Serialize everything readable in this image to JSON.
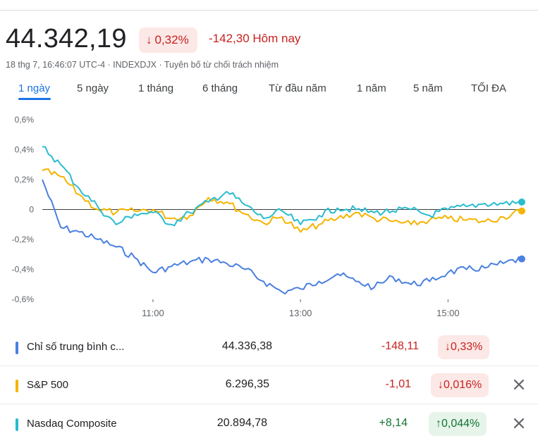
{
  "quote": {
    "price": "44.342,19",
    "change_pct": "0,32%",
    "change_abs": "-142,30 Hôm nay",
    "meta": "18 thg 7, 16:46:07 UTC-4 · INDEXDJX · Tuyên bố từ chối trách nhiệm",
    "arrow": "↓"
  },
  "tabs": [
    {
      "label": "1 ngày",
      "active": true
    },
    {
      "label": "5 ngày"
    },
    {
      "label": "1 tháng"
    },
    {
      "label": "6 tháng"
    },
    {
      "label": "Từ đầu năm"
    },
    {
      "label": "1 năm"
    },
    {
      "label": "5 năm"
    },
    {
      "label": "TỐI ĐA"
    }
  ],
  "colors": {
    "dow": "#4a80e0",
    "sp500": "#f5b400",
    "nasdaq": "#2abccf",
    "negative": "#c5221f",
    "positive": "#137333",
    "accent": "#1a73e8"
  },
  "chart_data": {
    "type": "line",
    "xlabel": "",
    "ylabel": "",
    "x_ticks": [
      "11:00",
      "13:00",
      "15:00"
    ],
    "x_range": [
      "09:30",
      "16:00"
    ],
    "y_ticks": [
      "0,6%",
      "0,4%",
      "0,2%",
      "0",
      "-0,2%",
      "-0,4%",
      "-0,6%"
    ],
    "ylim": [
      -0.6,
      0.6
    ],
    "baseline": 0,
    "grid": false,
    "series": [
      {
        "name": "Chỉ số trung bình c...",
        "color": "#4a80e0",
        "x": [
          "09:30",
          "09:45",
          "10:00",
          "10:15",
          "10:30",
          "10:45",
          "11:00",
          "11:15",
          "11:30",
          "11:45",
          "12:00",
          "12:15",
          "12:30",
          "12:45",
          "13:00",
          "13:15",
          "13:30",
          "13:45",
          "14:00",
          "14:15",
          "14:30",
          "14:45",
          "15:00",
          "15:15",
          "15:30",
          "15:45",
          "16:00"
        ],
        "values": [
          0.2,
          -0.12,
          -0.15,
          -0.2,
          -0.25,
          -0.32,
          -0.42,
          -0.38,
          -0.35,
          -0.33,
          -0.36,
          -0.4,
          -0.48,
          -0.55,
          -0.53,
          -0.48,
          -0.43,
          -0.48,
          -0.52,
          -0.45,
          -0.5,
          -0.48,
          -0.42,
          -0.4,
          -0.39,
          -0.36,
          -0.33
        ]
      },
      {
        "name": "S&P 500",
        "color": "#f5b400",
        "x": [
          "09:30",
          "09:45",
          "10:00",
          "10:15",
          "10:30",
          "10:45",
          "11:00",
          "11:15",
          "11:30",
          "11:45",
          "12:00",
          "12:15",
          "12:30",
          "12:45",
          "13:00",
          "13:15",
          "13:30",
          "13:45",
          "14:00",
          "14:15",
          "14:30",
          "14:45",
          "15:00",
          "15:15",
          "15:30",
          "15:45",
          "16:00"
        ],
        "values": [
          0.26,
          0.22,
          0.1,
          0.0,
          -0.02,
          -0.01,
          0.0,
          -0.06,
          -0.04,
          0.08,
          0.05,
          -0.03,
          -0.09,
          -0.05,
          -0.15,
          -0.1,
          -0.06,
          -0.02,
          -0.06,
          -0.08,
          -0.1,
          -0.07,
          -0.06,
          -0.07,
          -0.08,
          -0.05,
          -0.01
        ]
      },
      {
        "name": "Nasdaq Composite",
        "color": "#2abccf",
        "x": [
          "09:30",
          "09:45",
          "10:00",
          "10:15",
          "10:30",
          "10:45",
          "11:00",
          "11:15",
          "11:30",
          "11:45",
          "12:00",
          "12:15",
          "12:30",
          "12:45",
          "13:00",
          "13:15",
          "13:30",
          "13:45",
          "14:00",
          "14:15",
          "14:30",
          "14:45",
          "15:00",
          "15:15",
          "15:30",
          "15:45",
          "16:00"
        ],
        "values": [
          0.42,
          0.3,
          0.14,
          0.02,
          -0.1,
          -0.03,
          -0.02,
          -0.1,
          -0.02,
          0.05,
          0.12,
          0.03,
          -0.06,
          -0.01,
          -0.1,
          -0.04,
          0.01,
          0.0,
          -0.02,
          -0.01,
          0.0,
          -0.04,
          0.0,
          0.02,
          0.04,
          0.04,
          0.05
        ]
      }
    ]
  },
  "rows": [
    {
      "name": "Chỉ số trung bình c...",
      "value": "44.336,38",
      "abs": "-148,11",
      "pct": "0,33%",
      "arrow": "↓",
      "dir": "neg",
      "color": "#4a80e0"
    },
    {
      "name": "S&P 500",
      "value": "6.296,35",
      "abs": "-1,01",
      "pct": "0,016%",
      "arrow": "↓",
      "dir": "neg",
      "color": "#f5b400"
    },
    {
      "name": "Nasdaq Composite",
      "value": "20.894,78",
      "abs": "+8,14",
      "pct": "0,044%",
      "arrow": "↑",
      "dir": "pos",
      "color": "#2abccf"
    }
  ]
}
